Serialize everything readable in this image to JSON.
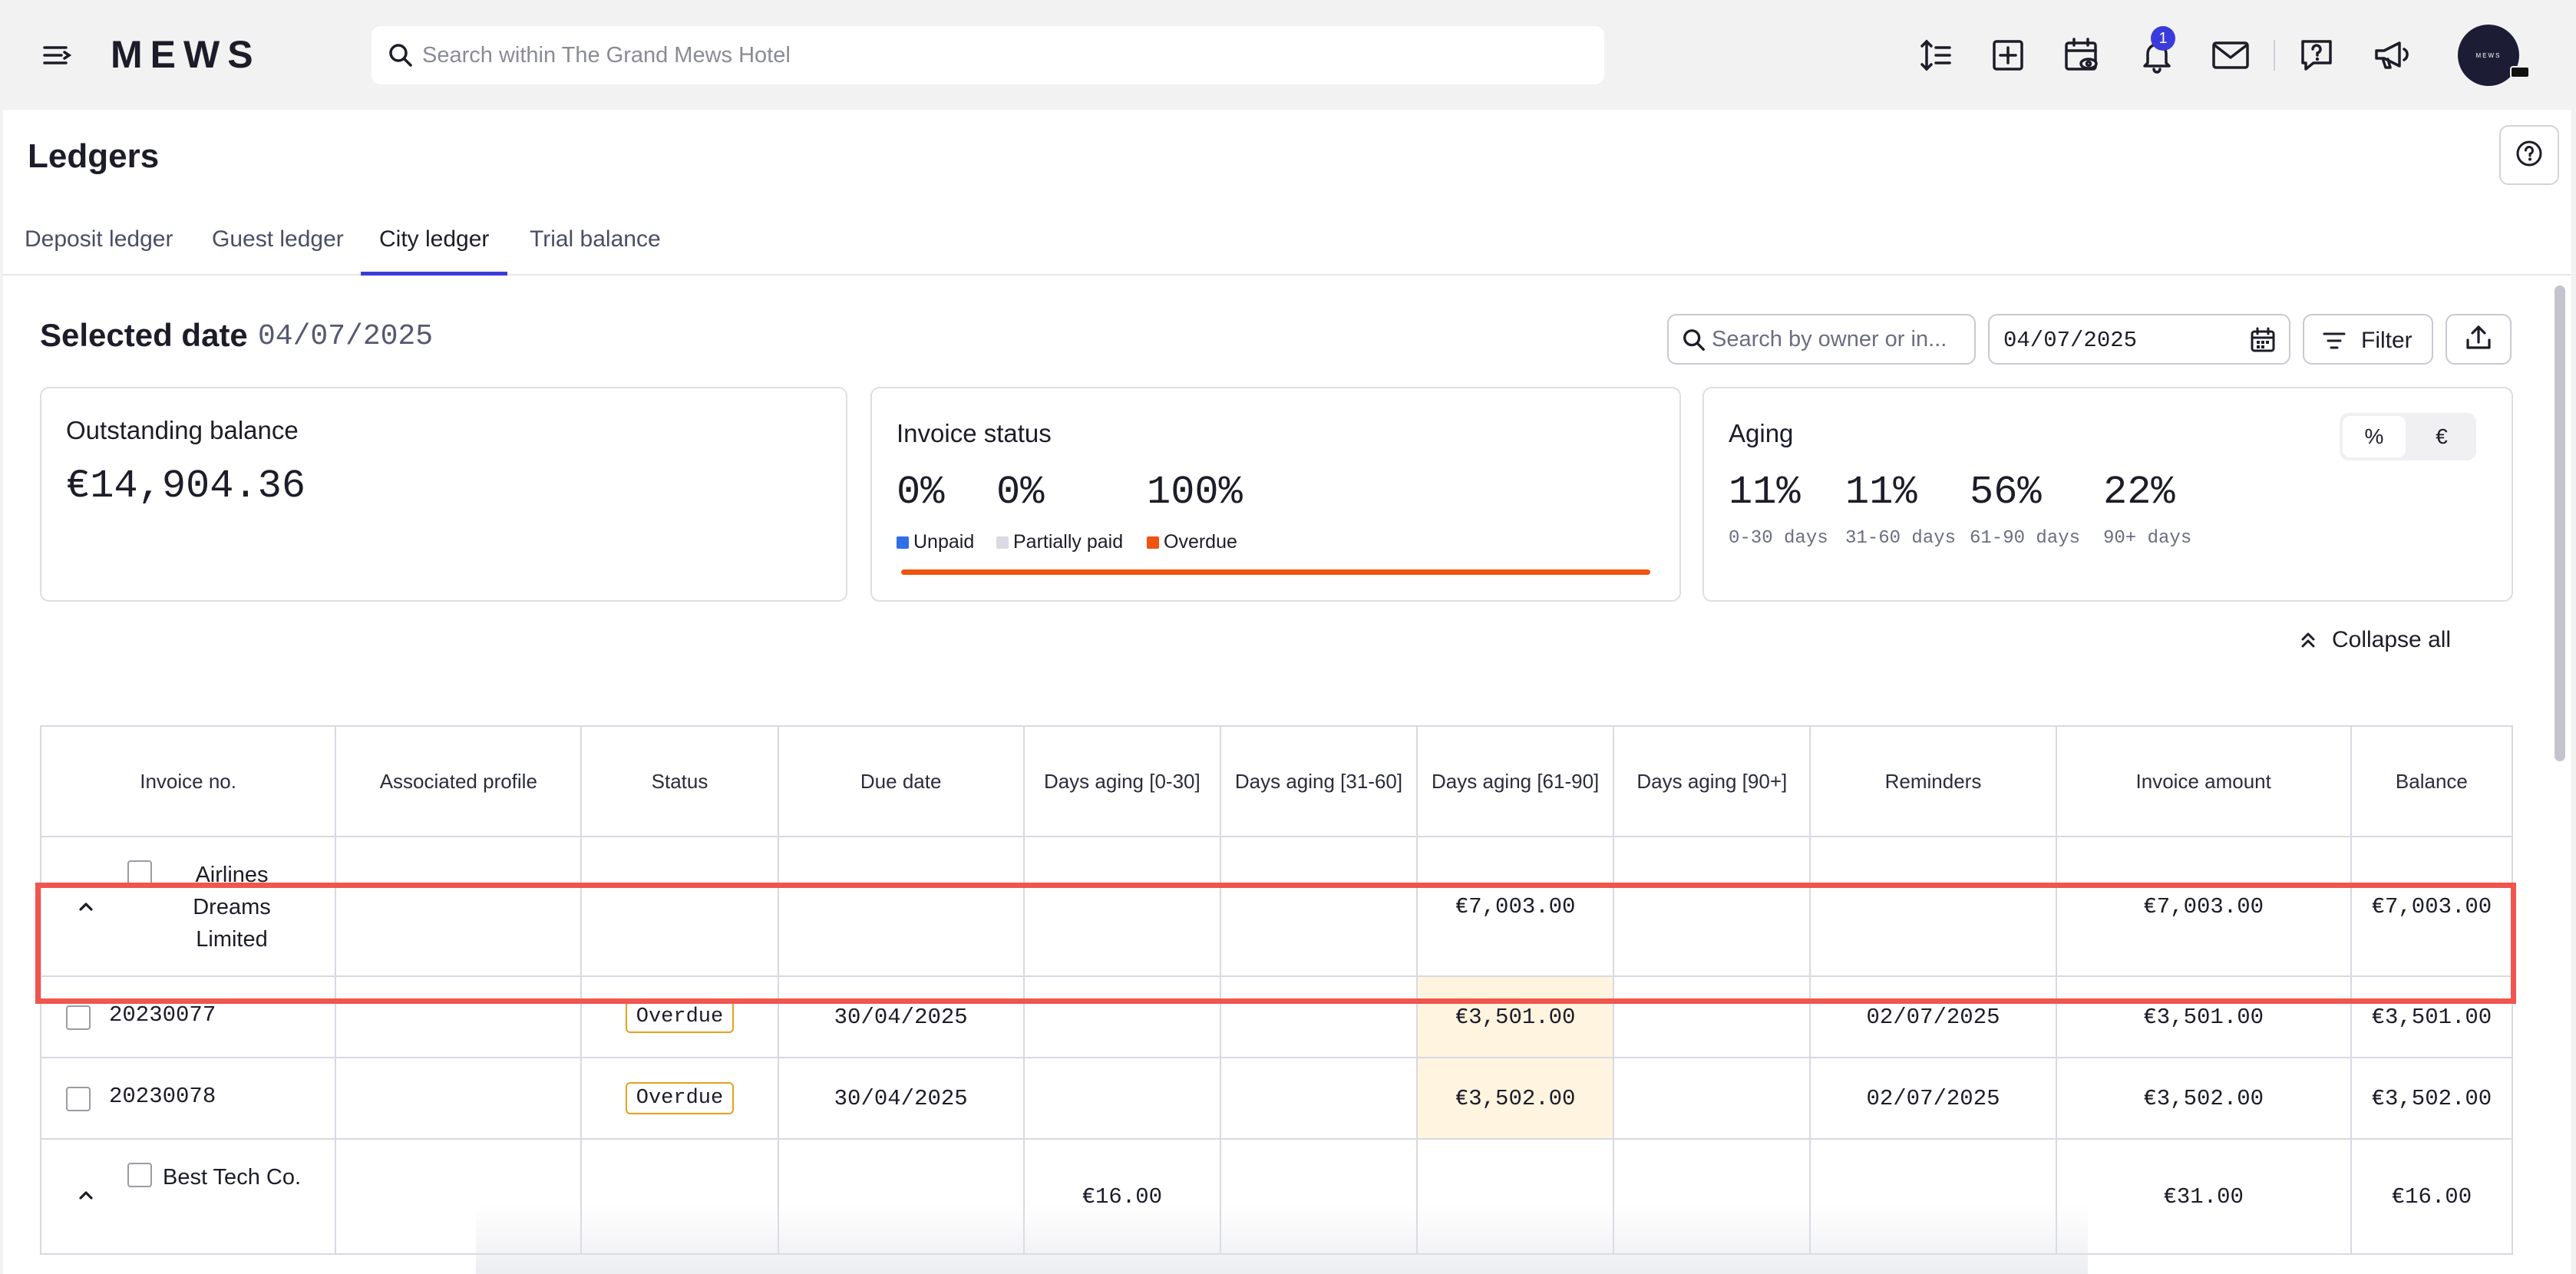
{
  "app": {
    "logo": "MEWS",
    "search_placeholder": "Search within The Grand Mews Hotel",
    "notification_count": "1",
    "avatar_text": "MEWS"
  },
  "icons": [
    "menu-icon",
    "search-icon",
    "sort-icon",
    "add-icon",
    "calendar-view-icon",
    "bell-icon",
    "mail-icon",
    "help-chat-icon",
    "megaphone-icon",
    "help-icon",
    "calendar-icon",
    "filter-icon",
    "upload-icon",
    "chevron-up-icon",
    "collapse-icon"
  ],
  "colors": {
    "accent": "#3b3bdc",
    "overdue_bar": "#f0540f",
    "unpaid": "#2f6fe8",
    "partially_paid": "#d9dae3",
    "overdue_dot": "#f0540f",
    "highlight_cell": "#fff4e0",
    "selection_outline": "#f0554e"
  },
  "page": {
    "title": "Ledgers",
    "tabs": [
      {
        "label": "Deposit ledger",
        "active": false
      },
      {
        "label": "Guest ledger",
        "active": false
      },
      {
        "label": "City ledger",
        "active": true
      },
      {
        "label": "Trial balance",
        "active": false
      }
    ]
  },
  "toolbar": {
    "selected_date_label": "Selected date",
    "selected_date_value": "04/07/2025",
    "search_placeholder": "Search by owner or in...",
    "date_value": "04/07/2025",
    "filter_label": "Filter"
  },
  "cards": {
    "outstanding": {
      "title": "Outstanding balance",
      "value": "€14,904.36"
    },
    "invoice_status": {
      "title": "Invoice status",
      "items": [
        {
          "value": "0%",
          "label": "Unpaid"
        },
        {
          "value": "0%",
          "label": "Partially paid"
        },
        {
          "value": "100%",
          "label": "Overdue"
        }
      ]
    },
    "aging": {
      "title": "Aging",
      "toggle": [
        "%",
        "€"
      ],
      "toggle_selected": "%",
      "items": [
        {
          "value": "11%",
          "label": "0-30 days"
        },
        {
          "value": "11%",
          "label": "31-60 days"
        },
        {
          "value": "56%",
          "label": "61-90 days"
        },
        {
          "value": "22%",
          "label": "90+ days"
        }
      ]
    }
  },
  "collapse_all": "Collapse all",
  "table": {
    "headers": [
      "Invoice no.",
      "Associated profile",
      "Status",
      "Due date",
      "Days aging [0-30]",
      "Days aging [31-60]",
      "Days aging [61-90]",
      "Days aging [90+]",
      "Reminders",
      "Invoice amount",
      "Balance"
    ],
    "groups": [
      {
        "name": "Airlines Dreams Limited",
        "d0_30": "",
        "d31_60": "",
        "d61_90": "€7,003.00",
        "d90": "",
        "invoice_amount": "€7,003.00",
        "balance": "€7,003.00",
        "rows": [
          {
            "invoice_no": "20230077",
            "status": "Overdue",
            "due_date": "30/04/2025",
            "d61_90": "€3,501.00",
            "reminders": "02/07/2025",
            "invoice_amount": "€3,501.00",
            "balance": "€3,501.00"
          },
          {
            "invoice_no": "20230078",
            "status": "Overdue",
            "due_date": "30/04/2025",
            "d61_90": "€3,502.00",
            "reminders": "02/07/2025",
            "invoice_amount": "€3,502.00",
            "balance": "€3,502.00"
          }
        ]
      },
      {
        "name": "Best Tech Co.",
        "d0_30": "€16.00",
        "d31_60": "",
        "d61_90": "",
        "d90": "",
        "invoice_amount": "€31.00",
        "balance": "€16.00"
      }
    ]
  }
}
